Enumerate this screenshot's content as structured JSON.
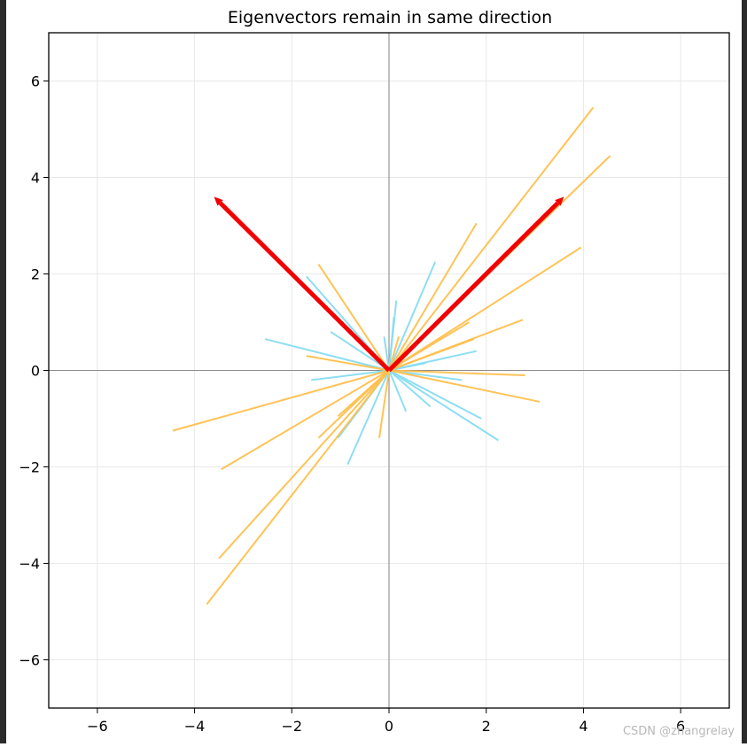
{
  "chart_data": {
    "type": "line",
    "title": "Eigenvectors remain in same direction",
    "xlabel": "",
    "ylabel": "",
    "xlim": [
      -7,
      7
    ],
    "ylim": [
      -7,
      7
    ],
    "xticks": [
      -6,
      -4,
      -2,
      0,
      2,
      4,
      6
    ],
    "yticks": [
      -6,
      -4,
      -2,
      0,
      2,
      4,
      6
    ],
    "xtick_labels": [
      "−6",
      "−4",
      "−2",
      "0",
      "2",
      "4",
      "6"
    ],
    "ytick_labels": [
      "−6",
      "−4",
      "−2",
      "0",
      "2",
      "4",
      "6"
    ],
    "grid": true,
    "zero_axes": true,
    "colors": {
      "original_vectors": "#87dcf2",
      "transformed_vectors": "#ffc04d",
      "eigenvectors": "#f20000",
      "grid": "#e8e8e8",
      "zero_axis": "#8c8c8c"
    },
    "series": [
      {
        "role": "original_vectors",
        "segments": [
          [
            0.95,
            2.25
          ],
          [
            0.15,
            1.45
          ],
          [
            -1.7,
            1.95
          ],
          [
            -1.2,
            0.8
          ],
          [
            -2.55,
            0.65
          ],
          [
            -1.6,
            -0.2
          ],
          [
            0.1,
            1.1
          ],
          [
            1.8,
            0.4
          ],
          [
            1.5,
            -0.2
          ],
          [
            1.9,
            -1.0
          ],
          [
            2.25,
            -1.45
          ],
          [
            0.85,
            -0.75
          ],
          [
            0.35,
            -0.85
          ],
          [
            -0.85,
            -1.95
          ],
          [
            -1.05,
            -1.4
          ],
          [
            0.75,
            0.15
          ],
          [
            -0.1,
            0.7
          ]
        ]
      },
      {
        "role": "transformed_vectors",
        "segments": [
          [
            4.2,
            5.45
          ],
          [
            4.55,
            4.45
          ],
          [
            3.95,
            2.55
          ],
          [
            1.8,
            3.05
          ],
          [
            -1.45,
            2.2
          ],
          [
            2.75,
            1.05
          ],
          [
            1.65,
            1.0
          ],
          [
            1.75,
            0.65
          ],
          [
            0.2,
            0.7
          ],
          [
            -1.7,
            0.3
          ],
          [
            2.8,
            -0.1
          ],
          [
            3.1,
            -0.65
          ],
          [
            -4.45,
            -1.25
          ],
          [
            -3.45,
            -2.05
          ],
          [
            -3.5,
            -3.9
          ],
          [
            -3.75,
            -4.85
          ],
          [
            -1.45,
            -1.4
          ],
          [
            -0.2,
            -1.4
          ],
          [
            -1.05,
            -0.95
          ]
        ]
      },
      {
        "role": "eigenvectors",
        "segments": [
          [
            3.6,
            3.6
          ],
          [
            -3.6,
            3.6
          ]
        ]
      }
    ]
  },
  "watermark": "CSDN @zhangrelay"
}
